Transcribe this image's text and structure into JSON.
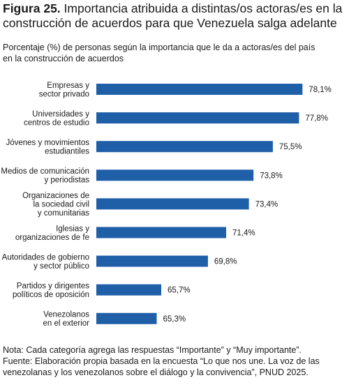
{
  "header": {
    "figure_label": "Figura 25.",
    "title_line1": "Importancia atribuida a distintas/os actoras/es en la",
    "title_line2": "construcción de acuerdos para que Venezuela salga adelante",
    "subtitle_line1": "Porcentaje (%) de personas según la importancia que le da a actoras/es del país",
    "subtitle_line2": "en la construcción de acuerdos"
  },
  "chart_data": {
    "type": "bar",
    "orientation": "horizontal",
    "bar_color": "#1f5fa8",
    "grid": false,
    "categories": [
      [
        "Empresas y",
        "sector privado"
      ],
      [
        "Universidades y",
        "centros de estudio"
      ],
      [
        "Jóvenes y movimientos",
        "estudiantiles"
      ],
      [
        "Medios de comunicación",
        "y periodistas"
      ],
      [
        "Organizaciones de",
        "la sociedad civil",
        "y comunitarias"
      ],
      [
        "Iglesias y",
        "organizaciones de fe"
      ],
      [
        "Autoridades de gobierno",
        "y sector público"
      ],
      [
        "Partidos y dirigentes",
        "políticos de oposición"
      ],
      [
        "Venezolanos",
        "en el exterior"
      ]
    ],
    "values": [
      78.1,
      77.8,
      75.5,
      73.8,
      73.4,
      71.4,
      69.8,
      65.7,
      65.3
    ],
    "value_labels": [
      "78,1%",
      "77,8%",
      "75,5%",
      "73,8%",
      "73,4%",
      "71,4%",
      "69,8%",
      "65,7%",
      "65,3%"
    ],
    "xlim": [
      60,
      79
    ]
  },
  "footer": {
    "note": "Nota: Cada categoría agrega las respuestas “Importante” y “Muy importante”.",
    "source_line1": "Fuente: Elaboración propia basada en la encuesta “Lo que nos une. La voz de las",
    "source_line2": "venezolanas y los venezolanos sobre el diálogo y la convivencia”, PNUD 2025."
  }
}
